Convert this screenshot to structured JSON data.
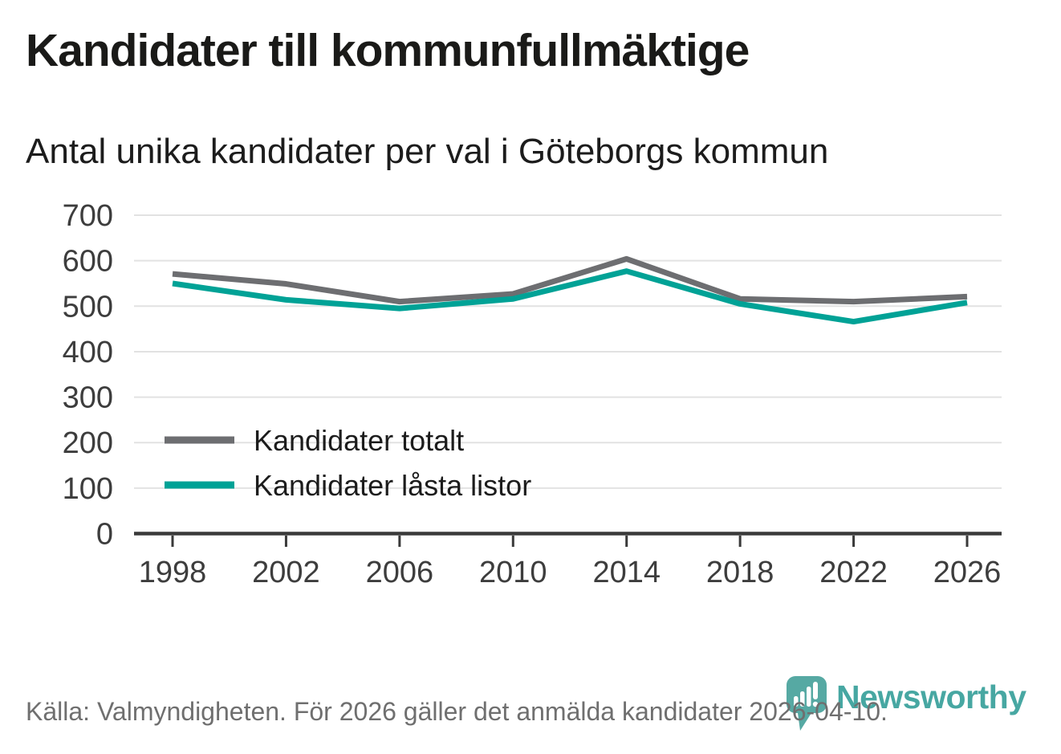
{
  "title": "Kandidater till kommunfullmäktige",
  "subtitle": "Antal unika kandidater per val i Göteborgs kommun",
  "footer": {
    "source": "Källa: Valmyndigheten. För 2026 gäller det anmälda kandidater 2026-04-10."
  },
  "brand": {
    "name": "Newsworthy",
    "color": "#2e9c96",
    "icon": "newsworthy-pin-barchart-icon"
  },
  "chart_data": {
    "type": "line",
    "title": "Kandidater till kommunfullmäktige",
    "subtitle": "Antal unika kandidater per val i Göteborgs kommun",
    "x": [
      1998,
      2002,
      2006,
      2010,
      2014,
      2018,
      2022,
      2026
    ],
    "series": [
      {
        "name": "Kandidater totalt",
        "color": "#6d6e71",
        "values": [
          571,
          549,
          510,
          527,
          604,
          516,
          510,
          521
        ]
      },
      {
        "name": "Kandidater låsta listor",
        "color": "#00a296",
        "values": [
          550,
          514,
          495,
          516,
          577,
          505,
          466,
          508
        ]
      }
    ],
    "ylim": [
      0,
      700
    ],
    "yticks": [
      0,
      100,
      200,
      300,
      400,
      500,
      600,
      700
    ],
    "grid": true,
    "grid_color": "#e2e2e2",
    "axis_color": "#3a3a3a",
    "tick_label_color": "#3d3d3d",
    "legend_text_color": "#1c1c1c",
    "legend_position": "inside-left-bottom"
  }
}
